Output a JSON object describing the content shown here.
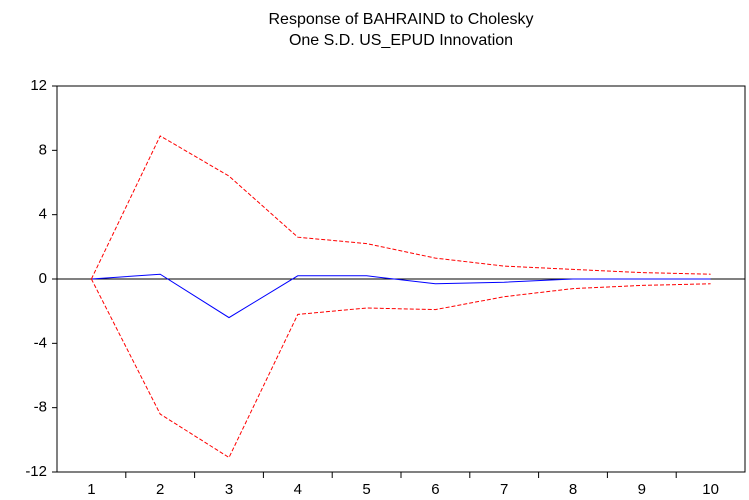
{
  "chart_data": {
    "type": "line",
    "title_lines": [
      "Response of BAHRAIND to Cholesky",
      "One S.D. US_EPUD Innovation"
    ],
    "categories": [
      "1",
      "2",
      "3",
      "4",
      "5",
      "6",
      "7",
      "8",
      "9",
      "10"
    ],
    "series": [
      {
        "color": "#0000ff",
        "dash": false,
        "values": [
          0,
          0.3,
          -2.4,
          0.2,
          0.2,
          -0.3,
          -0.2,
          0.0,
          0.0,
          0.0
        ]
      },
      {
        "color": "#ff0000",
        "dash": true,
        "values": [
          0,
          8.9,
          6.4,
          2.6,
          2.2,
          1.3,
          0.8,
          0.6,
          0.4,
          0.3
        ]
      },
      {
        "color": "#ff0000",
        "dash": true,
        "values": [
          0,
          -8.4,
          -11.1,
          -2.2,
          -1.8,
          -1.9,
          -1.1,
          -0.6,
          -0.4,
          -0.3
        ]
      }
    ],
    "ylim": [
      -12,
      12
    ],
    "yticks": [
      12,
      8,
      4,
      0,
      -4,
      -8,
      -12
    ],
    "zero_line": true
  }
}
